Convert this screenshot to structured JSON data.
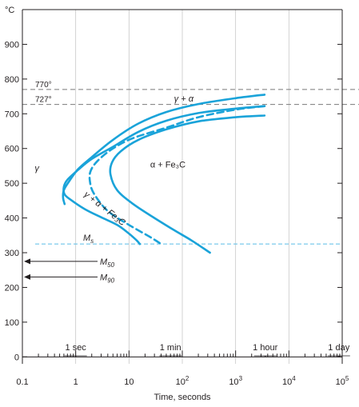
{
  "chart_data": {
    "type": "line",
    "title": "",
    "xlabel": "Time, seconds",
    "ylabel": "°C",
    "x_scale": "log",
    "xlim": [
      0.1,
      100000
    ],
    "ylim": [
      -20,
      1000
    ],
    "grid": "vertical",
    "x_ticks": [
      {
        "value": 0.1,
        "label": "0.1"
      },
      {
        "value": 1,
        "label": "1"
      },
      {
        "value": 10,
        "label": "10"
      },
      {
        "value": 100,
        "label": "10",
        "exp": "2"
      },
      {
        "value": 1000,
        "label": "10",
        "exp": "3"
      },
      {
        "value": 10000,
        "label": "10",
        "exp": "4"
      },
      {
        "value": 100000,
        "label": "10",
        "exp": "5"
      }
    ],
    "y_ticks": [
      0,
      100,
      200,
      300,
      400,
      500,
      600,
      700,
      800,
      900
    ],
    "time_markers": [
      {
        "label": "1 sec",
        "time": 1
      },
      {
        "label": "1 min",
        "time": 60
      },
      {
        "label": "1 hour",
        "time": 3600
      },
      {
        "label": "1 day",
        "time": 86400
      }
    ],
    "reference_lines": [
      {
        "label": "770°",
        "temp": 770,
        "style": "dashed"
      },
      {
        "label": "727°",
        "temp": 727,
        "style": "dashed"
      }
    ],
    "ms_line": {
      "label": "M",
      "sub": "s",
      "temp": 325
    },
    "arrows": [
      {
        "label": "M",
        "sub": "50",
        "temp": 275
      },
      {
        "label": "M",
        "sub": "90",
        "temp": 230
      }
    ],
    "series": [
      {
        "style": "solid",
        "points": [
          [
            3500,
            755
          ],
          [
            1000,
            745
          ],
          [
            200,
            728
          ],
          [
            50,
            705
          ],
          [
            15,
            672
          ],
          [
            5,
            625
          ],
          [
            2,
            575
          ],
          [
            1.1,
            540
          ],
          [
            0.75,
            505
          ],
          [
            0.6,
            480
          ],
          [
            0.58,
            458
          ],
          [
            0.62,
            440
          ]
        ]
      },
      {
        "style": "solid",
        "points": [
          [
            3500,
            722
          ],
          [
            1000,
            715
          ],
          [
            200,
            702
          ],
          [
            50,
            680
          ],
          [
            15,
            648
          ],
          [
            5,
            605
          ],
          [
            2,
            570
          ],
          [
            1.1,
            538
          ],
          [
            0.7,
            510
          ],
          [
            0.6,
            490
          ],
          [
            0.62,
            468
          ],
          [
            0.85,
            450
          ],
          [
            1.5,
            425
          ],
          [
            3,
            402
          ],
          [
            6,
            380
          ],
          [
            10,
            355
          ],
          [
            14,
            335
          ],
          [
            16,
            325
          ]
        ]
      },
      {
        "style": "dashed",
        "points": [
          [
            3500,
            722
          ],
          [
            1000,
            712
          ],
          [
            200,
            690
          ],
          [
            50,
            660
          ],
          [
            12,
            630
          ],
          [
            5,
            600
          ],
          [
            2.6,
            565
          ],
          [
            1.9,
            535
          ],
          [
            1.85,
            505
          ],
          [
            2.2,
            470
          ],
          [
            4,
            420
          ],
          [
            10,
            380
          ],
          [
            25,
            345
          ],
          [
            40,
            325
          ]
        ]
      },
      {
        "style": "solid",
        "points": [
          [
            3500,
            695
          ],
          [
            1000,
            690
          ],
          [
            200,
            678
          ],
          [
            50,
            655
          ],
          [
            15,
            625
          ],
          [
            7,
            592
          ],
          [
            4.8,
            560
          ],
          [
            4.5,
            525
          ],
          [
            6,
            480
          ],
          [
            12,
            440
          ],
          [
            30,
            400
          ],
          [
            70,
            365
          ],
          [
            150,
            335
          ],
          [
            330,
            300
          ]
        ]
      }
    ],
    "region_labels": [
      {
        "label": "γ",
        "time": 0.17,
        "temp": 535,
        "style": "italic"
      },
      {
        "label": "γ + α",
        "time": 70,
        "temp": 735,
        "style": "italic"
      },
      {
        "label": "γ + α + Fe₃C",
        "time": 1.4,
        "temp": 465,
        "style": "italic",
        "rotate": 38
      },
      {
        "label": "α + Fe₃C",
        "time": 25,
        "temp": 545,
        "style": "upright"
      }
    ],
    "colors": {
      "curve": "#1aa3d9",
      "ms_line": "#5bbde6",
      "axis": "#231f20",
      "grid": "#c8c8c8",
      "reference": "#7a7a7a"
    }
  }
}
